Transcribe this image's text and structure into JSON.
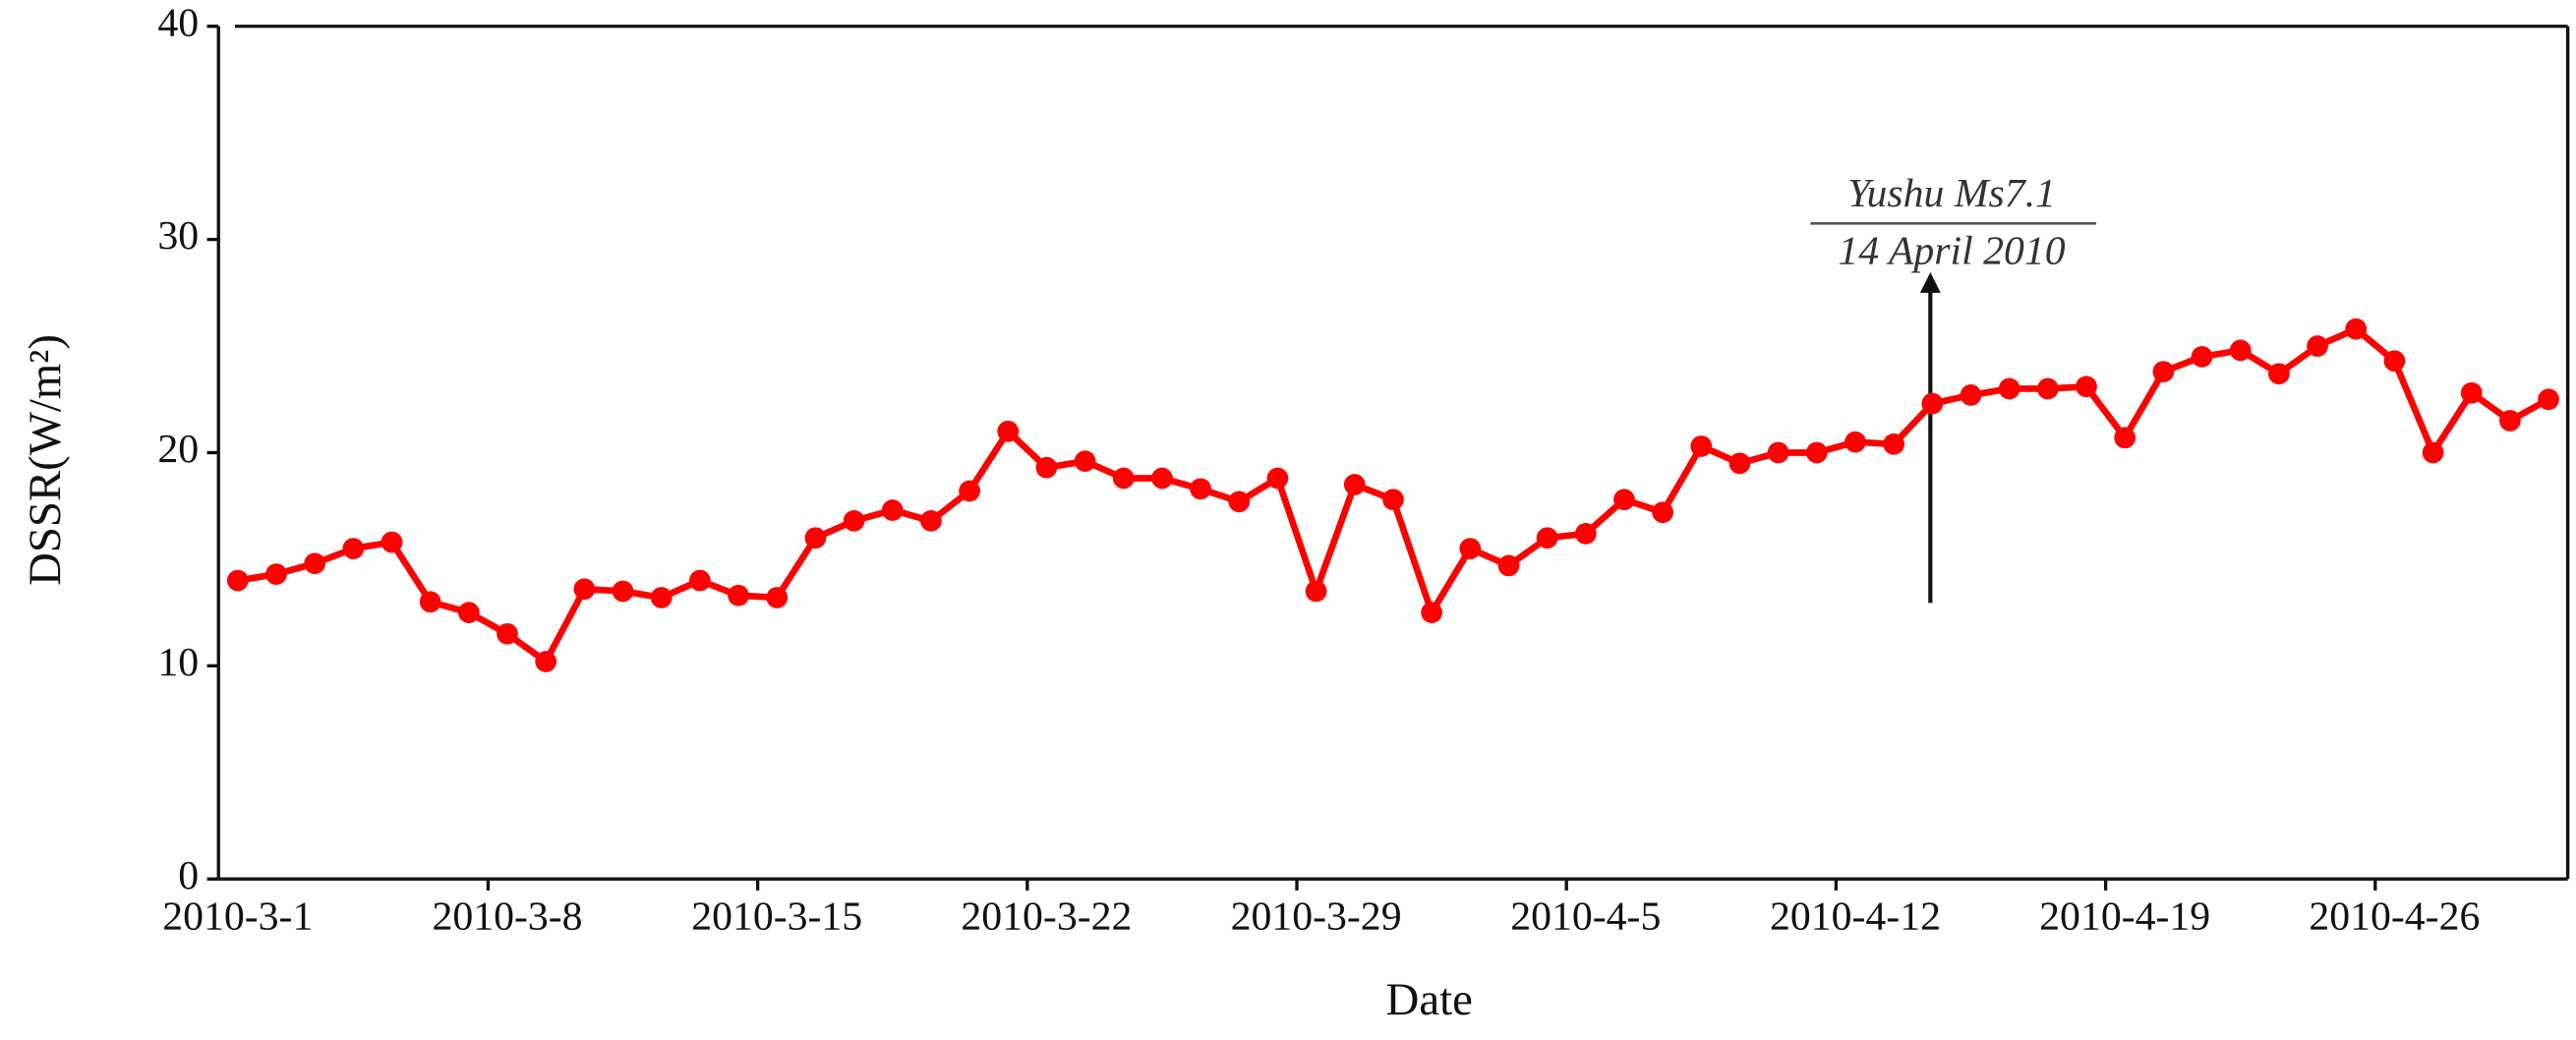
{
  "chart_data": {
    "type": "line",
    "x_label": "Date",
    "y_label": "DSSR(W/m²)",
    "annotation": [
      "Yushu Ms7.1",
      "14 April 2010"
    ],
    "categories": [
      "2010-3-1",
      null,
      null,
      null,
      null,
      null,
      null,
      "2010-3-8",
      null,
      null,
      null,
      null,
      null,
      null,
      "2010-3-15",
      null,
      null,
      null,
      null,
      null,
      null,
      "2010-3-22",
      null,
      null,
      null,
      null,
      null,
      null,
      "2010-3-29",
      null,
      null,
      null,
      null,
      null,
      null,
      "2010-4-5",
      null,
      null,
      null,
      null,
      null,
      null,
      "2010-4-12",
      null,
      null,
      null,
      null,
      null,
      null,
      "2010-4-19",
      null,
      null,
      null,
      null,
      null,
      null,
      "2010-4-26",
      null,
      null,
      null,
      null
    ],
    "series": [
      {
        "name": "DSSR",
        "color": "#ff0000",
        "values": [
          14.0,
          14.3,
          14.8,
          15.5,
          15.8,
          13.0,
          12.5,
          11.5,
          10.2,
          13.6,
          13.5,
          13.2,
          14.0,
          13.3,
          13.2,
          16.0,
          16.8,
          17.3,
          16.8,
          18.2,
          21.0,
          19.3,
          19.6,
          18.8,
          18.8,
          18.3,
          17.7,
          18.8,
          13.5,
          18.5,
          17.8,
          12.5,
          15.5,
          14.7,
          16.0,
          16.2,
          17.8,
          17.2,
          20.3,
          19.5,
          20.0,
          20.0,
          20.5,
          20.4,
          22.3,
          22.7,
          23.0,
          23.0,
          23.1,
          20.7,
          23.8,
          24.5,
          24.8,
          23.7,
          25.0,
          25.8,
          24.3,
          20.0,
          22.8,
          21.5,
          22.5
        ]
      }
    ],
    "ylim": [
      0,
      40
    ],
    "yticks": [
      0,
      10,
      20,
      30,
      40
    ],
    "grid": false
  }
}
